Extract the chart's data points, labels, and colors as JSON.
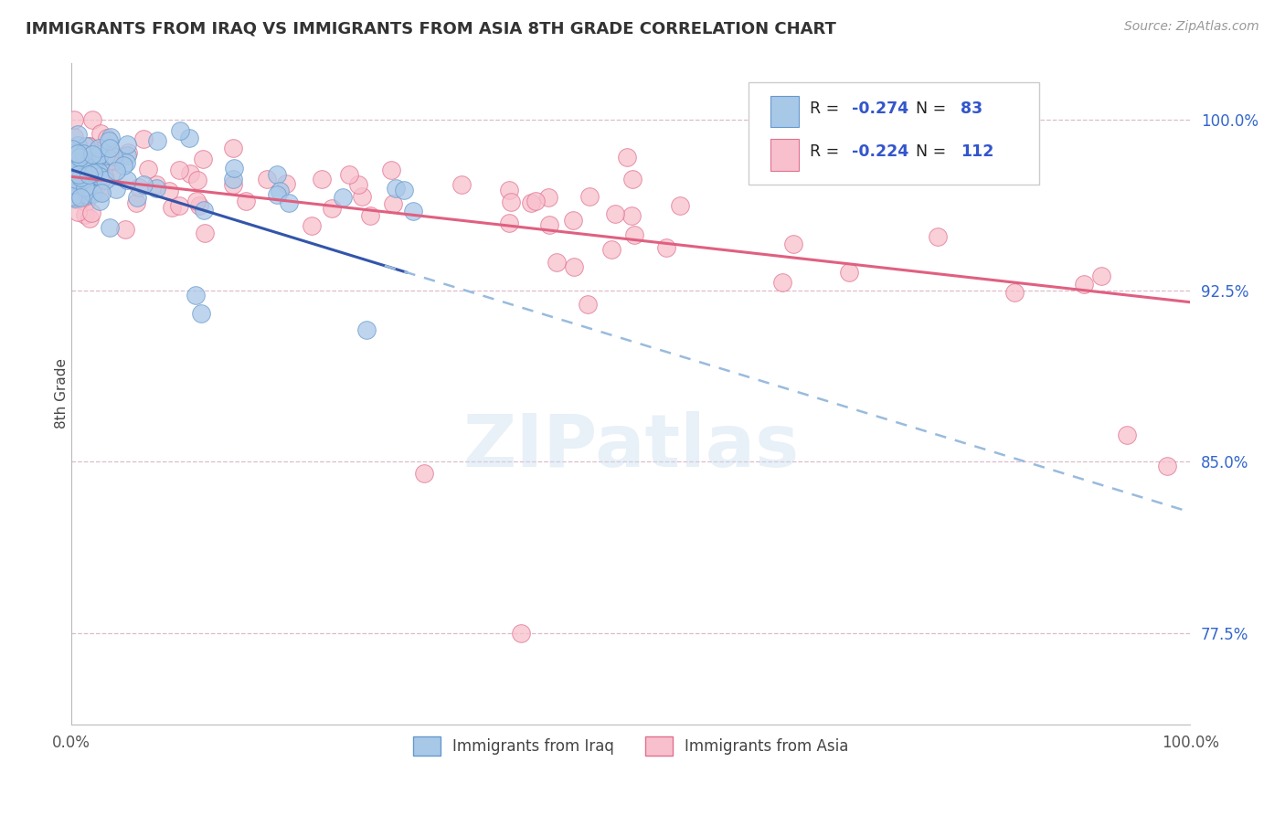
{
  "title": "IMMIGRANTS FROM IRAQ VS IMMIGRANTS FROM ASIA 8TH GRADE CORRELATION CHART",
  "source_text": "Source: ZipAtlas.com",
  "ylabel": "8th Grade",
  "y_tick_labels": [
    "77.5%",
    "85.0%",
    "92.5%",
    "100.0%"
  ],
  "y_ticks": [
    0.775,
    0.85,
    0.925,
    1.0
  ],
  "x_lim": [
    0.0,
    1.0
  ],
  "y_lim": [
    0.735,
    1.025
  ],
  "blue_color": "#a8c8e8",
  "blue_edge": "#6699cc",
  "blue_line_color": "#3355aa",
  "pink_color": "#f8c0cc",
  "pink_edge": "#e07090",
  "pink_line_color": "#e06080",
  "blue_dash_color": "#99bbdd",
  "watermark": "ZIPatlas",
  "background_color": "#ffffff",
  "grid_color": "#ddbbcc",
  "title_color": "#333333",
  "r1_val": "-0.274",
  "n1_val": "83",
  "r2_val": "-0.224",
  "n2_val": "112",
  "legend_label1": "Immigrants from Iraq",
  "legend_label2": "Immigrants from Asia"
}
